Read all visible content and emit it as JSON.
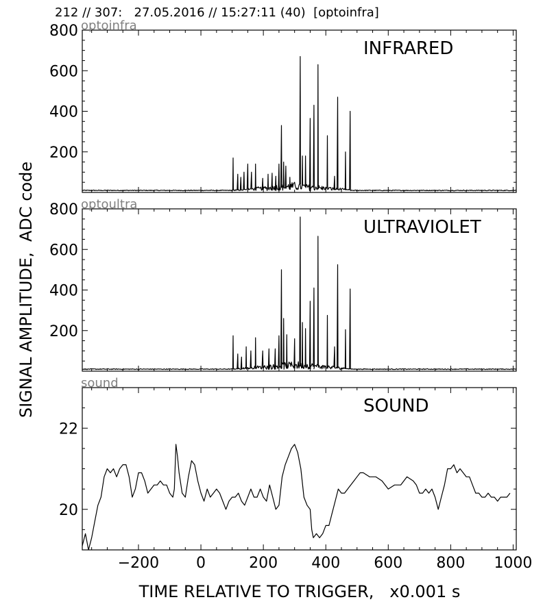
{
  "header": "212 // 307:   27.05.2016 // 15:27:11 (40)  [optoinfra]",
  "ylabel": "SIGNAL AMPLITUDE,  ADC code",
  "xlabel": "TIME RELATIVE TO TRIGGER,   x0.001 s",
  "chart_data": [
    {
      "type": "line",
      "channel": "optoinfra",
      "title": "INFRARED",
      "xlim": [
        -380,
        1010
      ],
      "ylim": [
        0,
        800
      ],
      "yticks": [
        200,
        400,
        600,
        800
      ],
      "baseline": 10,
      "noise_start": 100,
      "noise_end": 480,
      "spikes": [
        {
          "x": 103,
          "y": 170
        },
        {
          "x": 118,
          "y": 90
        },
        {
          "x": 128,
          "y": 75
        },
        {
          "x": 138,
          "y": 100
        },
        {
          "x": 150,
          "y": 140
        },
        {
          "x": 162,
          "y": 100
        },
        {
          "x": 175,
          "y": 140
        },
        {
          "x": 198,
          "y": 70
        },
        {
          "x": 215,
          "y": 90
        },
        {
          "x": 228,
          "y": 95
        },
        {
          "x": 240,
          "y": 80
        },
        {
          "x": 250,
          "y": 140
        },
        {
          "x": 258,
          "y": 330
        },
        {
          "x": 265,
          "y": 150
        },
        {
          "x": 272,
          "y": 130
        },
        {
          "x": 285,
          "y": 75
        },
        {
          "x": 318,
          "y": 670
        },
        {
          "x": 325,
          "y": 180
        },
        {
          "x": 335,
          "y": 180
        },
        {
          "x": 350,
          "y": 365
        },
        {
          "x": 362,
          "y": 430
        },
        {
          "x": 375,
          "y": 630
        },
        {
          "x": 388,
          "y": 30
        },
        {
          "x": 405,
          "y": 280
        },
        {
          "x": 428,
          "y": 80
        },
        {
          "x": 438,
          "y": 470
        },
        {
          "x": 463,
          "y": 200
        },
        {
          "x": 478,
          "y": 400
        }
      ],
      "xticks": [
        -200,
        0,
        200,
        400,
        600,
        800,
        1000
      ]
    },
    {
      "type": "line",
      "channel": "optoultra",
      "title": "ULTRAVIOLET",
      "xlim": [
        -380,
        1010
      ],
      "ylim": [
        0,
        800
      ],
      "yticks": [
        200,
        400,
        600,
        800
      ],
      "baseline": 10,
      "noise_start": 100,
      "noise_end": 480,
      "spikes": [
        {
          "x": 103,
          "y": 175
        },
        {
          "x": 118,
          "y": 85
        },
        {
          "x": 130,
          "y": 70
        },
        {
          "x": 145,
          "y": 120
        },
        {
          "x": 160,
          "y": 100
        },
        {
          "x": 175,
          "y": 165
        },
        {
          "x": 198,
          "y": 100
        },
        {
          "x": 218,
          "y": 110
        },
        {
          "x": 238,
          "y": 110
        },
        {
          "x": 250,
          "y": 175
        },
        {
          "x": 258,
          "y": 500
        },
        {
          "x": 265,
          "y": 260
        },
        {
          "x": 275,
          "y": 180
        },
        {
          "x": 300,
          "y": 160
        },
        {
          "x": 318,
          "y": 760
        },
        {
          "x": 325,
          "y": 240
        },
        {
          "x": 335,
          "y": 210
        },
        {
          "x": 350,
          "y": 345
        },
        {
          "x": 362,
          "y": 410
        },
        {
          "x": 375,
          "y": 665
        },
        {
          "x": 405,
          "y": 275
        },
        {
          "x": 428,
          "y": 120
        },
        {
          "x": 438,
          "y": 525
        },
        {
          "x": 463,
          "y": 205
        },
        {
          "x": 478,
          "y": 405
        }
      ]
    },
    {
      "type": "line",
      "channel": "sound",
      "title": "SOUND",
      "xlim": [
        -380,
        1010
      ],
      "ylim": [
        19.0,
        23.0
      ],
      "yticks": [
        20,
        22
      ],
      "xticks": [
        -200,
        0,
        200,
        400,
        600,
        800,
        1000
      ],
      "points": [
        [
          -380,
          19.1
        ],
        [
          -370,
          19.4
        ],
        [
          -360,
          19.0
        ],
        [
          -350,
          19.3
        ],
        [
          -340,
          19.7
        ],
        [
          -330,
          20.1
        ],
        [
          -320,
          20.3
        ],
        [
          -310,
          20.8
        ],
        [
          -300,
          21.0
        ],
        [
          -290,
          20.9
        ],
        [
          -280,
          21.0
        ],
        [
          -270,
          20.8
        ],
        [
          -260,
          21.0
        ],
        [
          -250,
          21.1
        ],
        [
          -240,
          21.1
        ],
        [
          -230,
          20.8
        ],
        [
          -220,
          20.3
        ],
        [
          -210,
          20.5
        ],
        [
          -200,
          20.9
        ],
        [
          -190,
          20.9
        ],
        [
          -180,
          20.7
        ],
        [
          -170,
          20.4
        ],
        [
          -160,
          20.5
        ],
        [
          -150,
          20.6
        ],
        [
          -140,
          20.6
        ],
        [
          -130,
          20.7
        ],
        [
          -120,
          20.6
        ],
        [
          -110,
          20.6
        ],
        [
          -100,
          20.4
        ],
        [
          -90,
          20.3
        ],
        [
          -85,
          20.5
        ],
        [
          -80,
          21.6
        ],
        [
          -75,
          21.3
        ],
        [
          -70,
          20.9
        ],
        [
          -60,
          20.4
        ],
        [
          -50,
          20.3
        ],
        [
          -40,
          20.8
        ],
        [
          -30,
          21.2
        ],
        [
          -20,
          21.1
        ],
        [
          -10,
          20.7
        ],
        [
          0,
          20.4
        ],
        [
          10,
          20.2
        ],
        [
          20,
          20.5
        ],
        [
          30,
          20.3
        ],
        [
          40,
          20.4
        ],
        [
          50,
          20.5
        ],
        [
          60,
          20.4
        ],
        [
          70,
          20.2
        ],
        [
          80,
          20.0
        ],
        [
          90,
          20.2
        ],
        [
          100,
          20.3
        ],
        [
          110,
          20.3
        ],
        [
          120,
          20.4
        ],
        [
          130,
          20.2
        ],
        [
          140,
          20.1
        ],
        [
          150,
          20.3
        ],
        [
          160,
          20.5
        ],
        [
          170,
          20.3
        ],
        [
          180,
          20.3
        ],
        [
          190,
          20.5
        ],
        [
          200,
          20.3
        ],
        [
          210,
          20.2
        ],
        [
          220,
          20.6
        ],
        [
          230,
          20.3
        ],
        [
          240,
          20.0
        ],
        [
          250,
          20.1
        ],
        [
          260,
          20.8
        ],
        [
          270,
          21.1
        ],
        [
          280,
          21.3
        ],
        [
          290,
          21.5
        ],
        [
          300,
          21.6
        ],
        [
          310,
          21.4
        ],
        [
          320,
          21.0
        ],
        [
          330,
          20.3
        ],
        [
          340,
          20.1
        ],
        [
          350,
          20.0
        ],
        [
          355,
          19.5
        ],
        [
          360,
          19.3
        ],
        [
          370,
          19.4
        ],
        [
          380,
          19.3
        ],
        [
          390,
          19.4
        ],
        [
          400,
          19.6
        ],
        [
          410,
          19.6
        ],
        [
          420,
          19.9
        ],
        [
          430,
          20.2
        ],
        [
          440,
          20.5
        ],
        [
          450,
          20.4
        ],
        [
          460,
          20.4
        ],
        [
          470,
          20.5
        ],
        [
          480,
          20.6
        ],
        [
          490,
          20.7
        ],
        [
          500,
          20.8
        ],
        [
          510,
          20.9
        ],
        [
          520,
          20.9
        ],
        [
          540,
          20.8
        ],
        [
          560,
          20.8
        ],
        [
          580,
          20.7
        ],
        [
          600,
          20.5
        ],
        [
          620,
          20.6
        ],
        [
          640,
          20.6
        ],
        [
          660,
          20.8
        ],
        [
          680,
          20.7
        ],
        [
          690,
          20.6
        ],
        [
          700,
          20.4
        ],
        [
          710,
          20.4
        ],
        [
          720,
          20.5
        ],
        [
          730,
          20.4
        ],
        [
          740,
          20.5
        ],
        [
          750,
          20.3
        ],
        [
          760,
          20.0
        ],
        [
          770,
          20.3
        ],
        [
          780,
          20.6
        ],
        [
          790,
          21.0
        ],
        [
          800,
          21.0
        ],
        [
          810,
          21.1
        ],
        [
          820,
          20.9
        ],
        [
          830,
          21.0
        ],
        [
          840,
          20.9
        ],
        [
          850,
          20.8
        ],
        [
          860,
          20.8
        ],
        [
          870,
          20.6
        ],
        [
          880,
          20.4
        ],
        [
          890,
          20.4
        ],
        [
          900,
          20.3
        ],
        [
          910,
          20.3
        ],
        [
          920,
          20.4
        ],
        [
          930,
          20.3
        ],
        [
          940,
          20.3
        ],
        [
          950,
          20.2
        ],
        [
          960,
          20.3
        ],
        [
          970,
          20.3
        ],
        [
          980,
          20.3
        ],
        [
          990,
          20.4
        ]
      ]
    }
  ]
}
